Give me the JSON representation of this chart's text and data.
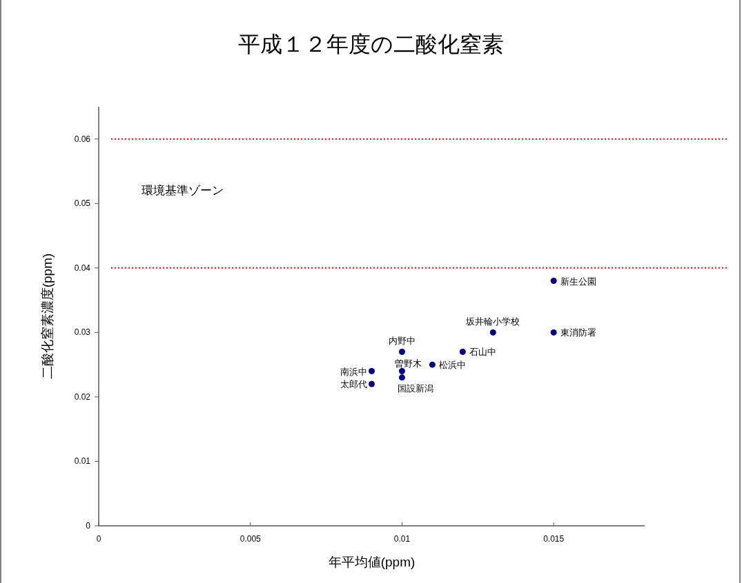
{
  "chart_data": {
    "type": "scatter",
    "title": "平成１２年度の二酸化窒素",
    "xlabel": "年平均値(ppm)",
    "ylabel": "二酸化窒素濃度(ppm)",
    "xlim": [
      0,
      0.018
    ],
    "ylim": [
      0,
      0.065
    ],
    "xticks": [
      0,
      0.005,
      0.01,
      0.015
    ],
    "yticks": [
      0,
      0.01,
      0.02,
      0.03,
      0.04,
      0.05,
      0.06
    ],
    "grid": false,
    "legend": false,
    "marker": "circle",
    "series": [
      {
        "name": "新生公園",
        "color": "#000080",
        "x": [
          0.015
        ],
        "values": [
          0.038
        ]
      },
      {
        "name": "坂井輪小学校",
        "color": "#000080",
        "x": [
          0.013
        ],
        "values": [
          0.03
        ]
      },
      {
        "name": "東消防署",
        "color": "#000080",
        "x": [
          0.015
        ],
        "values": [
          0.03
        ]
      },
      {
        "name": "内野中",
        "color": "#000080",
        "x": [
          0.01
        ],
        "values": [
          0.027
        ]
      },
      {
        "name": "石山中",
        "color": "#000080",
        "x": [
          0.012
        ],
        "values": [
          0.027
        ]
      },
      {
        "name": "曽野木",
        "color": "#000080",
        "x": [
          0.01
        ],
        "values": [
          0.024
        ]
      },
      {
        "name": "松浜中",
        "color": "#000080",
        "x": [
          0.011
        ],
        "values": [
          0.025
        ]
      },
      {
        "name": "南浜中",
        "color": "#000080",
        "x": [
          0.009
        ],
        "values": [
          0.024
        ]
      },
      {
        "name": "国設新潟",
        "color": "#000080",
        "x": [
          0.01
        ],
        "values": [
          0.023
        ]
      },
      {
        "name": "太郎代",
        "color": "#000080",
        "x": [
          0.009
        ],
        "values": [
          0.022
        ]
      }
    ],
    "ref_lines": [
      {
        "axis": "y",
        "value": 0.06,
        "color": "#ff0000",
        "line_style": "dotted"
      },
      {
        "axis": "y",
        "value": 0.04,
        "color": "#ff0000",
        "line_style": "dotted"
      }
    ],
    "annotations": [
      "環境基準ゾーン"
    ]
  }
}
